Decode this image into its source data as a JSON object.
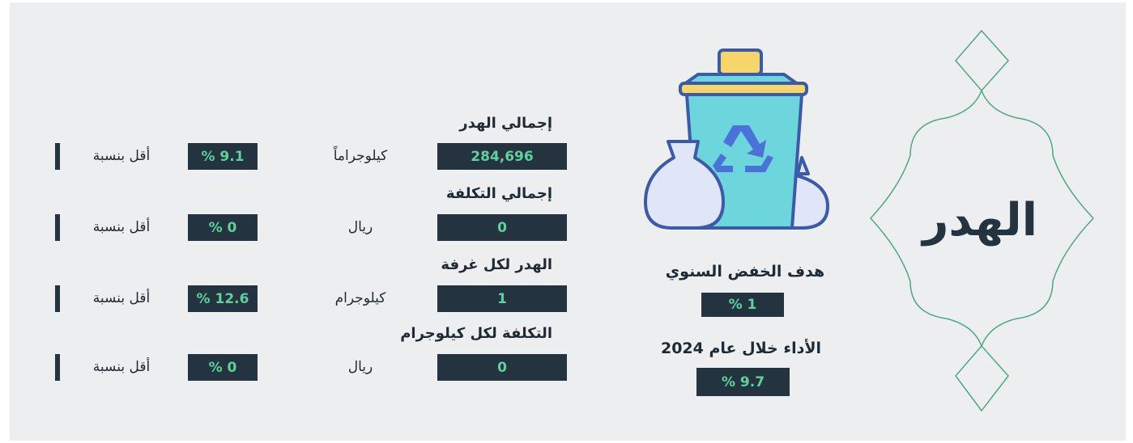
{
  "title": "الهدر",
  "target": {
    "label": "هدف الخفض السنوي",
    "value": "% 1"
  },
  "performance": {
    "label": "الأداء خلال عام 2024",
    "value": "% 9.7"
  },
  "metrics": [
    {
      "heading": "إجمالي الهدر",
      "value": "284,696",
      "unit": "كيلوجراماً",
      "change": "% 9.1",
      "change_label": "أقل بنسبة"
    },
    {
      "heading": "إجمالي التكلفة",
      "value": "0",
      "unit": "ريال",
      "change": "% 0",
      "change_label": "أقل بنسبة"
    },
    {
      "heading": "الهدر لكل غرفة",
      "value": "1",
      "unit": "كيلوجرام",
      "change": "% 12.6",
      "change_label": "أقل بنسبة"
    },
    {
      "heading": "التكلفة لكل كيلوجرام",
      "value": "0",
      "unit": "ريال",
      "change": "% 0",
      "change_label": "أقل بنسبة"
    }
  ]
}
